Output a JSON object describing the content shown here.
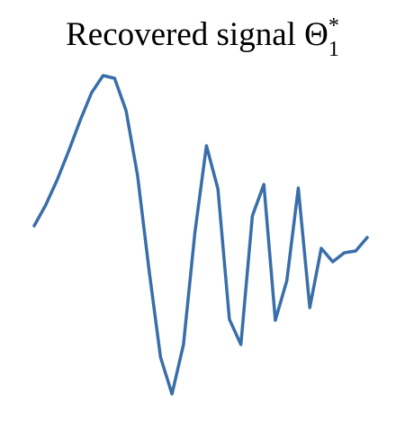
{
  "chart_data": {
    "type": "line",
    "title": "Recovered signal Θ",
    "title_superscript": "*",
    "title_subscript": "1",
    "x": [
      0,
      1,
      2,
      3,
      4,
      5,
      6,
      7,
      8,
      9,
      10,
      11,
      12,
      13,
      14,
      15,
      16,
      17,
      18,
      19,
      20,
      21,
      22,
      23,
      24,
      25,
      26,
      27,
      28,
      29
    ],
    "series": [
      {
        "color": "#3a6ea9",
        "values": [
          0,
          0.46,
          1.02,
          1.66,
          2.34,
          2.96,
          3.34,
          3.28,
          2.56,
          1.12,
          -0.98,
          -2.92,
          -3.74,
          -2.64,
          -0.14,
          1.78,
          0.82,
          -2.08,
          -2.64,
          0.22,
          0.92,
          -2.1,
          -1.22,
          0.84,
          -1.82,
          -0.5,
          -0.8,
          -0.6,
          -0.56,
          -0.26
        ]
      }
    ],
    "xlim": [
      0,
      29
    ],
    "ylim": [
      -4,
      4
    ]
  }
}
